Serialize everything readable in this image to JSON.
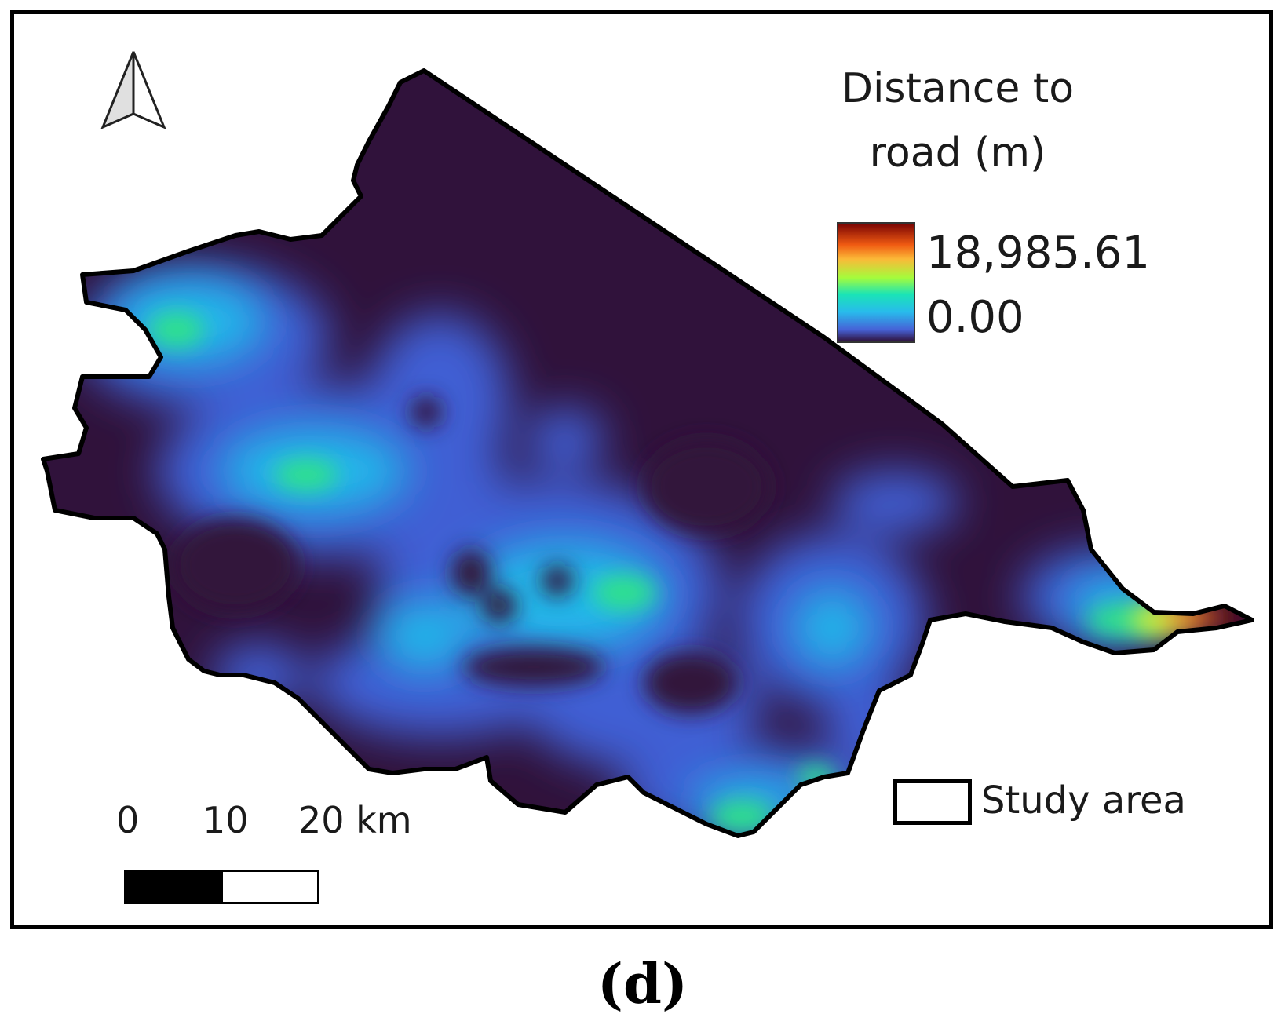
{
  "legend": {
    "title_line1": "Distance to",
    "title_line2": "road (m)",
    "max_label": "18,985.61",
    "min_label": "0.00",
    "colors": [
      "#30123b",
      "#4662d7",
      "#28bbec",
      "#1ae4b6",
      "#a4fc3c",
      "#fbb938",
      "#f05b12",
      "#7a0403"
    ]
  },
  "study_area_label": "Study area",
  "scale": {
    "labels": [
      "0",
      "10",
      "20 km"
    ],
    "segments": [
      "black",
      "white"
    ]
  },
  "north_arrow_icon": "north-arrow-icon",
  "caption": "(d)"
}
